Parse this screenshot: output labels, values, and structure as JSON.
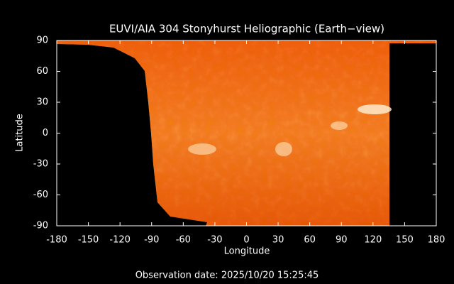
{
  "chart_data": {
    "type": "image",
    "title": "EUVI/AIA 304 Stonyhurst Heliographic (Earth−view)",
    "x_label": "Longitude",
    "y_label": "Latitude",
    "xlim": [
      -180,
      180
    ],
    "ylim": [
      -90,
      90
    ],
    "xticks": [
      -180,
      -150,
      -120,
      -90,
      -60,
      -30,
      0,
      30,
      60,
      90,
      120,
      150,
      180
    ],
    "yticks": [
      -90,
      -60,
      -30,
      0,
      30,
      60,
      90
    ],
    "footer": "Observation date: 2025/10/20 15:25:45"
  }
}
